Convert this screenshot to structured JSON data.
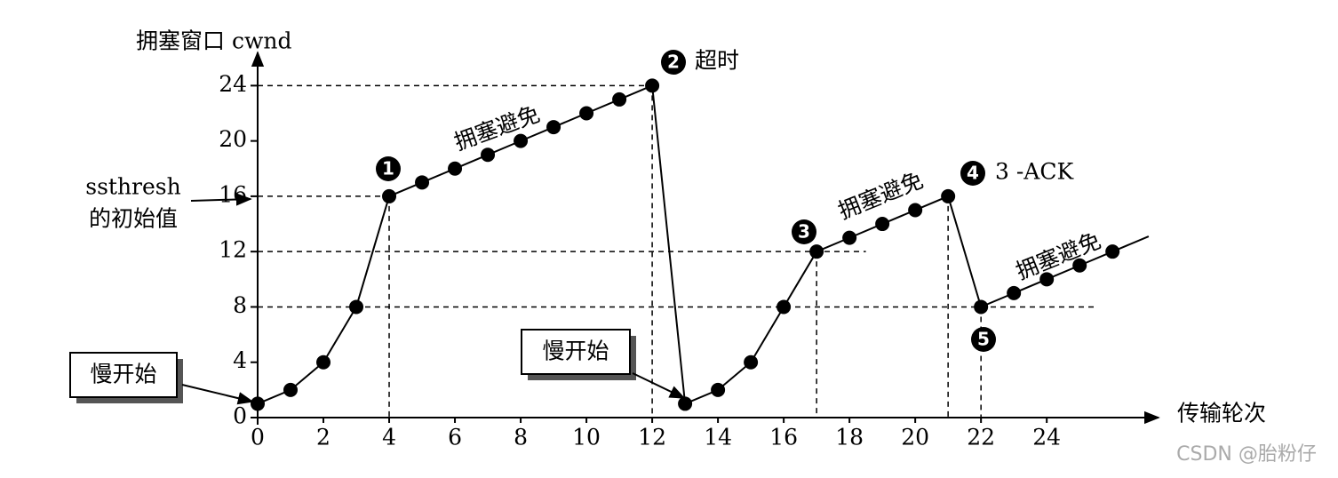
{
  "chart_data": {
    "type": "line",
    "y_label": "拥塞窗口 cwnd",
    "x_label": "传输轮次",
    "x": [
      0,
      1,
      2,
      3,
      4,
      5,
      6,
      7,
      8,
      9,
      10,
      11,
      12,
      13,
      14,
      15,
      16,
      17,
      18,
      19,
      20,
      21,
      22,
      23,
      24,
      25,
      26
    ],
    "series": [
      {
        "color": "#000000",
        "values": [
          1,
          2,
          4,
          8,
          16,
          17,
          18,
          19,
          20,
          21,
          22,
          23,
          24,
          1,
          2,
          4,
          8,
          12,
          13,
          14,
          15,
          16,
          8,
          9,
          10,
          11,
          12
        ]
      }
    ],
    "xlim": [
      0,
      27.4
    ],
    "ylim": [
      0,
      26.4
    ],
    "xticks": [
      0,
      2,
      4,
      6,
      8,
      10,
      12,
      14,
      16,
      18,
      20,
      22,
      24
    ],
    "yticks": [
      0,
      4,
      8,
      12,
      16,
      20,
      24
    ],
    "annotations": {
      "slow_start_1": "慢开始",
      "slow_start_2": "慢开始",
      "avoid_1": "拥塞避免",
      "avoid_2": "拥塞避免",
      "avoid_3": "拥塞避免",
      "timeout": "超时",
      "three_ack": "3 -ACK",
      "ssthresh": "ssthresh",
      "initial": "的初始值",
      "m1": "1",
      "m2": "2",
      "m3": "3",
      "m4": "4",
      "m5": "5"
    },
    "watermark": "CSDN @胎粉仔"
  }
}
